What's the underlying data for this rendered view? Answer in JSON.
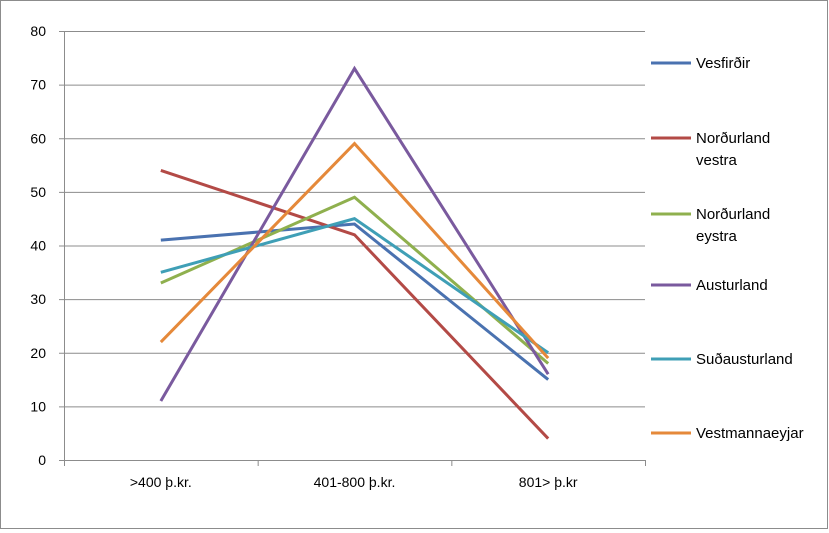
{
  "chart_data": {
    "type": "line",
    "title": "",
    "xlabel": "",
    "ylabel": "",
    "categories": [
      ">400 þ.kr.",
      "401-800 þ.kr.",
      "801> þ.kr"
    ],
    "ylim": [
      0,
      80
    ],
    "yticks": [
      0,
      10,
      20,
      30,
      40,
      50,
      60,
      70,
      80
    ],
    "grid": "horizontal",
    "legend_position": "right",
    "series": [
      {
        "name": "Vesfirðir",
        "label_lines": [
          "Vesfirðir"
        ],
        "color": "#4a72b0",
        "values": [
          41,
          44,
          15
        ]
      },
      {
        "name": "Norðurland vestra",
        "label_lines": [
          "Norðurland",
          "vestra"
        ],
        "color": "#b34a46",
        "values": [
          54,
          42,
          4
        ]
      },
      {
        "name": "Norðurland eystra",
        "label_lines": [
          "Norðurland",
          "eystra"
        ],
        "color": "#8fb04e",
        "values": [
          33,
          49,
          18
        ]
      },
      {
        "name": "Austurland",
        "label_lines": [
          "Austurland"
        ],
        "color": "#7a5a9e",
        "values": [
          11,
          73,
          16
        ]
      },
      {
        "name": "Suðausturland",
        "label_lines": [
          "Suðausturland"
        ],
        "color": "#3f9fb6",
        "values": [
          35,
          45,
          20
        ]
      },
      {
        "name": "Vestmannaeyjar",
        "label_lines": [
          "Vestmannaeyjar"
        ],
        "color": "#e5893a",
        "values": [
          22,
          59,
          19
        ]
      }
    ]
  }
}
